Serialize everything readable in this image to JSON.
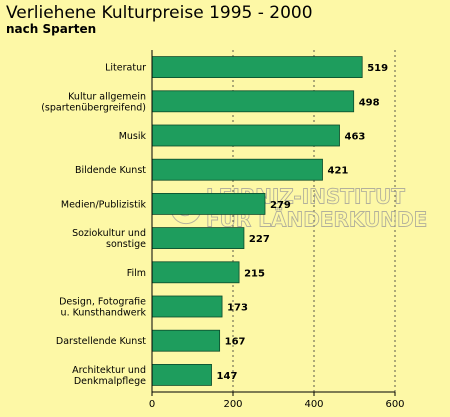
{
  "chart_data": {
    "type": "bar",
    "orientation": "horizontal",
    "title": "Verliehene Kulturpreise 1995 - 2000",
    "subtitle": "nach Sparten",
    "categories": [
      [
        "Literatur"
      ],
      [
        "Kultur allgemein",
        "(spartenübergreifend)"
      ],
      [
        "Musik"
      ],
      [
        "Bildende Kunst"
      ],
      [
        "Medien/Publizistik"
      ],
      [
        "Soziokultur und",
        "sonstige"
      ],
      [
        "Film"
      ],
      [
        "Design, Fotografie",
        "u. Kunsthandwerk"
      ],
      [
        "Darstellende Kunst"
      ],
      [
        "Architektur und",
        "Denkmalpflege"
      ]
    ],
    "values": [
      519,
      498,
      463,
      421,
      279,
      227,
      215,
      173,
      167,
      147
    ],
    "xlim": [
      0,
      600
    ],
    "xticks": [
      0,
      200,
      400,
      600
    ],
    "grid": "vertical dashed",
    "bar_color": "#1e9d5d",
    "watermark": [
      "LEIBNIZ-INSTITUT",
      "FÜR LÄNDERKUNDE"
    ]
  }
}
